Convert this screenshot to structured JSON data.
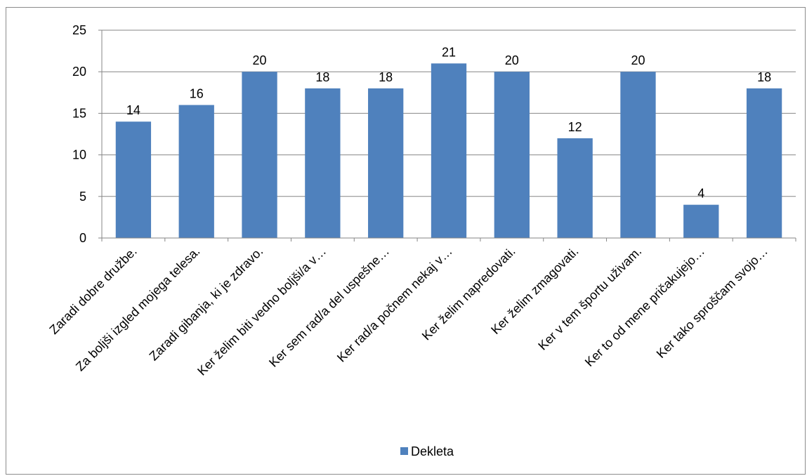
{
  "chart_data": {
    "type": "bar",
    "categories": [
      "Zaradi dobre družbe.",
      "Za boljši izgled mojega telesa.",
      "Zaradi gibanja, ki je zdravo.",
      "Ker želim biti vedno boljši/a v…",
      "Ker sem rad/a del uspešne…",
      "Ker rad/a počnem nekaj v…",
      "Ker želim napredovati.",
      "Ker želim zmagovati.",
      "Ker v tem športu uživam.",
      "Ker to od mene pričakujejo…",
      "Ker tako sproščam svojo…"
    ],
    "series": [
      {
        "name": "Dekleta",
        "values": [
          14,
          16,
          20,
          18,
          18,
          21,
          20,
          12,
          20,
          4,
          18
        ]
      }
    ],
    "ylim": [
      0,
      25
    ],
    "yticks": [
      0,
      5,
      10,
      15,
      20,
      25
    ],
    "grid": true,
    "legend": "bottom",
    "colors": {
      "bar": "#4f81bd",
      "gridline": "#868686",
      "axis": "#868686"
    }
  }
}
